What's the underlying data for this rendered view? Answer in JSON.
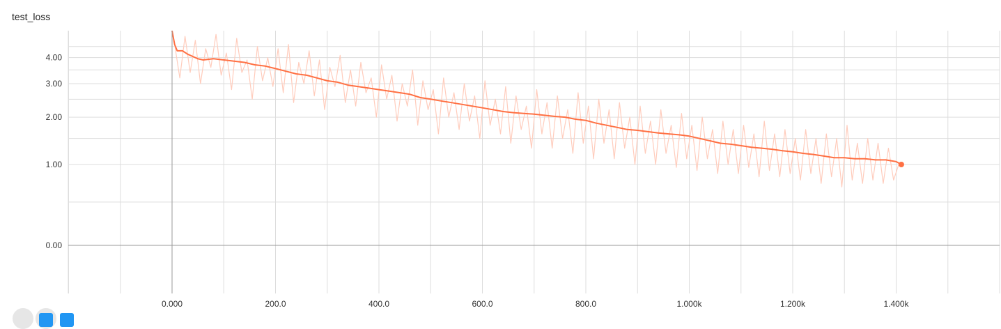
{
  "chart_data": {
    "type": "line",
    "title": "test_loss",
    "xlabel": "",
    "ylabel": "",
    "xlim": [
      -200,
      1605
    ],
    "x_ticks": [
      0,
      200,
      400,
      600,
      800,
      1000,
      1200,
      1400
    ],
    "x_tick_labels": [
      "0.000",
      "200.0",
      "400.0",
      "600.0",
      "800.0",
      "1.000k",
      "1.200k",
      "1.400k"
    ],
    "y_ticks": [
      0,
      1,
      2,
      3,
      4
    ],
    "y_tick_labels": [
      "0.00",
      "1.00",
      "2.00",
      "3.00",
      "4.00"
    ],
    "y_scale": "log1p",
    "y_visible_max": 5.1,
    "grid": true,
    "colors": {
      "smoothed": "#ff7043",
      "raw": "#ffccbc",
      "grid": "#dddddd",
      "zero_axis": "#999999",
      "control_button": "#2196f3"
    },
    "series": [
      {
        "style": "smoothed",
        "x": [
          0,
          5,
          10,
          20,
          30,
          40,
          50,
          60,
          80,
          100,
          120,
          140,
          160,
          180,
          200,
          220,
          240,
          260,
          280,
          300,
          320,
          340,
          360,
          380,
          400,
          420,
          440,
          460,
          480,
          500,
          520,
          540,
          560,
          580,
          600,
          620,
          640,
          660,
          680,
          700,
          720,
          740,
          760,
          780,
          800,
          820,
          840,
          860,
          880,
          900,
          920,
          940,
          960,
          980,
          1000,
          1020,
          1040,
          1060,
          1080,
          1100,
          1120,
          1140,
          1160,
          1180,
          1200,
          1220,
          1240,
          1260,
          1280,
          1300,
          1320,
          1340,
          1360,
          1380,
          1400,
          1410
        ],
        "values": [
          6.0,
          4.6,
          4.3,
          4.3,
          4.15,
          4.05,
          3.95,
          3.9,
          3.95,
          3.9,
          3.85,
          3.8,
          3.7,
          3.65,
          3.55,
          3.45,
          3.35,
          3.3,
          3.2,
          3.1,
          3.05,
          2.95,
          2.9,
          2.85,
          2.8,
          2.75,
          2.7,
          2.65,
          2.55,
          2.5,
          2.45,
          2.4,
          2.35,
          2.3,
          2.25,
          2.2,
          2.15,
          2.12,
          2.1,
          2.08,
          2.05,
          2.02,
          2.0,
          1.95,
          1.92,
          1.85,
          1.8,
          1.75,
          1.7,
          1.68,
          1.65,
          1.62,
          1.6,
          1.58,
          1.55,
          1.5,
          1.45,
          1.4,
          1.38,
          1.35,
          1.32,
          1.3,
          1.28,
          1.25,
          1.23,
          1.2,
          1.18,
          1.15,
          1.12,
          1.12,
          1.1,
          1.1,
          1.08,
          1.08,
          1.05,
          1.0
        ]
      },
      {
        "style": "raw",
        "x": [
          5,
          15,
          25,
          35,
          45,
          55,
          65,
          75,
          85,
          95,
          105,
          115,
          125,
          135,
          145,
          155,
          165,
          175,
          185,
          195,
          205,
          215,
          225,
          235,
          245,
          255,
          265,
          275,
          285,
          295,
          305,
          315,
          325,
          335,
          345,
          355,
          365,
          375,
          385,
          395,
          405,
          415,
          425,
          435,
          445,
          455,
          465,
          475,
          485,
          495,
          505,
          515,
          525,
          535,
          545,
          555,
          565,
          575,
          585,
          595,
          605,
          615,
          625,
          635,
          645,
          655,
          665,
          675,
          685,
          695,
          705,
          715,
          725,
          735,
          745,
          755,
          765,
          775,
          785,
          795,
          805,
          815,
          825,
          835,
          845,
          855,
          865,
          875,
          885,
          895,
          905,
          915,
          925,
          935,
          945,
          955,
          965,
          975,
          985,
          995,
          1005,
          1015,
          1025,
          1035,
          1045,
          1055,
          1065,
          1075,
          1085,
          1095,
          1105,
          1115,
          1125,
          1135,
          1145,
          1155,
          1165,
          1175,
          1185,
          1195,
          1205,
          1215,
          1225,
          1235,
          1245,
          1255,
          1265,
          1275,
          1285,
          1295,
          1305,
          1315,
          1325,
          1335,
          1345,
          1355,
          1365,
          1375,
          1385,
          1395,
          1405
        ],
        "values": [
          4.6,
          3.2,
          5.0,
          3.4,
          4.8,
          3.0,
          4.4,
          3.6,
          5.1,
          3.3,
          4.2,
          2.8,
          4.9,
          3.4,
          3.9,
          2.5,
          4.5,
          3.1,
          4.0,
          2.9,
          4.4,
          2.7,
          4.6,
          2.4,
          3.8,
          3.0,
          4.3,
          2.6,
          3.9,
          2.2,
          3.6,
          2.9,
          4.1,
          2.4,
          3.5,
          2.3,
          3.8,
          2.7,
          3.2,
          2.0,
          3.7,
          2.5,
          3.3,
          1.9,
          3.0,
          2.3,
          3.5,
          1.8,
          3.1,
          2.2,
          2.8,
          1.6,
          3.2,
          2.0,
          2.7,
          1.7,
          3.0,
          1.9,
          2.6,
          1.5,
          3.1,
          1.8,
          2.5,
          1.6,
          2.9,
          1.4,
          2.6,
          1.7,
          2.3,
          1.3,
          2.8,
          1.6,
          2.4,
          1.3,
          2.6,
          1.5,
          2.2,
          1.2,
          2.7,
          1.4,
          2.3,
          1.1,
          2.5,
          1.4,
          2.2,
          1.1,
          2.4,
          1.3,
          2.0,
          1.0,
          2.3,
          1.2,
          1.9,
          1.0,
          2.2,
          1.2,
          1.8,
          0.95,
          2.1,
          1.1,
          1.8,
          0.9,
          2.0,
          1.1,
          1.7,
          0.85,
          1.9,
          1.0,
          1.7,
          0.85,
          1.8,
          0.95,
          1.6,
          0.8,
          1.9,
          0.9,
          1.6,
          0.8,
          1.7,
          0.85,
          1.5,
          0.75,
          1.7,
          0.85,
          1.5,
          0.7,
          1.6,
          0.8,
          1.5,
          0.65,
          1.8,
          0.75,
          1.4,
          0.7,
          1.5,
          0.75,
          1.4,
          0.7,
          1.3,
          0.75,
          1.0
        ]
      }
    ]
  }
}
